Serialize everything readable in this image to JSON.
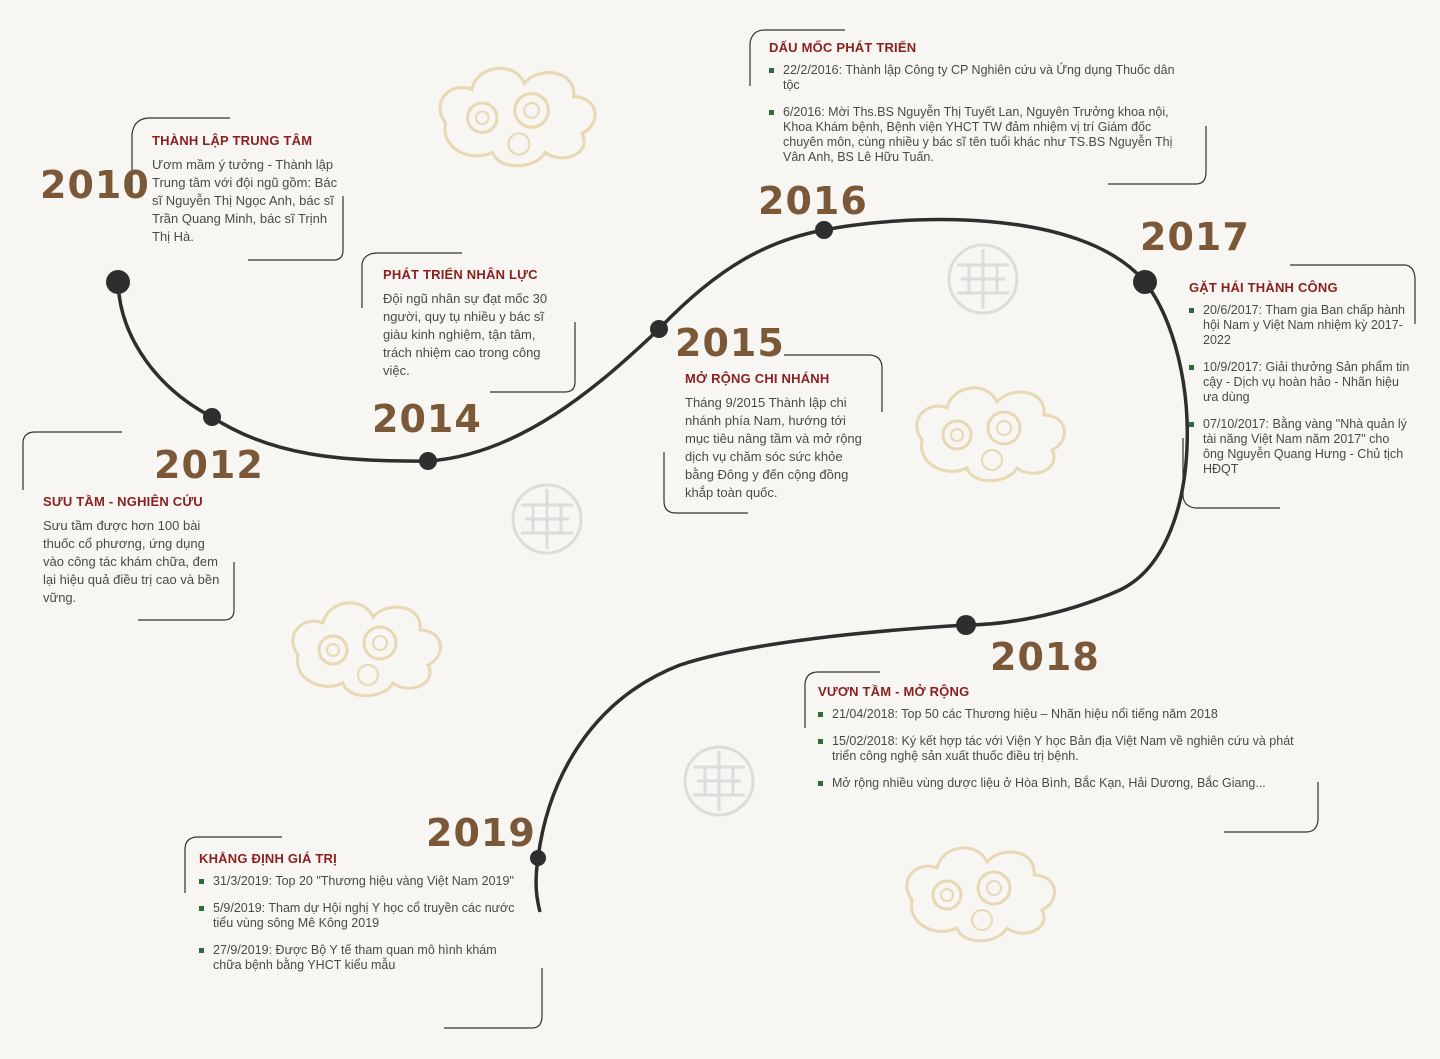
{
  "milestones": [
    {
      "year": "2010",
      "title": "THÀNH LẬP TRUNG TÂM",
      "text": "Ươm mầm ý tưởng - Thành lập Trung tâm với đội ngũ gồm: Bác sĩ Nguyễn Thị Ngọc Anh, bác sĩ Trần Quang Minh, bác sĩ Trịnh Thị Hà."
    },
    {
      "year": "2012",
      "title": "SƯU TẦM - NGHIÊN CỨU",
      "text": "Sưu tầm được hơn 100 bài thuốc cổ phương, ứng dụng vào công tác khám chữa, đem lại hiệu quả điều trị cao và bền vững."
    },
    {
      "year": "2014",
      "title": "PHÁT TRIỂN NHÂN LỰC",
      "text": "Đội ngũ nhân sự đạt mốc 30 người, quy tụ nhiều y bác sĩ giàu kinh nghiệm, tận tâm, trách nhiệm cao trong công việc."
    },
    {
      "year": "2015",
      "title": "MỞ RỘNG CHI NHÁNH",
      "text": "Tháng 9/2015 Thành lập chi nhánh phía Nam, hướng tới mục tiêu nâng tầm và mở rộng dịch vụ chăm sóc sức khỏe bằng Đông y đến cộng đồng khắp toàn quốc."
    },
    {
      "year": "2016",
      "title": "DẤU MỐC PHÁT TRIỂN",
      "items": [
        "22/2/2016: Thành lập Công ty CP Nghiên cứu và Ứng dụng Thuốc dân tộc",
        "6/2016: Mời Ths.BS Nguyễn Thị Tuyết Lan, Nguyên Trưởng khoa nội, Khoa Khám bệnh, Bệnh viện YHCT TW đảm nhiệm vị trí Giám đốc chuyên môn, cùng nhiều y bác sĩ tên tuổi khác như TS.BS Nguyễn Thị Vân Anh, BS Lê Hữu Tuấn."
      ]
    },
    {
      "year": "2017",
      "title": "GẶT HÁI THÀNH CÔNG",
      "items": [
        "20/6/2017: Tham gia Ban chấp hành hội Nam y Việt Nam nhiệm kỳ 2017-2022",
        "10/9/2017: Giải thưởng Sản phẩm tin cậy - Dịch vụ hoàn hảo - Nhãn hiệu ưa dùng",
        "07/10/2017: Bằng vàng \"Nhà quản lý tài năng Việt Nam năm 2017\" cho ông Nguyễn Quang Hưng - Chủ tịch HĐQT"
      ]
    },
    {
      "year": "2018",
      "title": "VƯƠN TẦM - MỞ RỘNG",
      "items": [
        "21/04/2018: Top 50 các Thương hiệu – Nhãn hiệu nổi tiếng năm 2018",
        "15/02/2018: Ký kết hợp tác với Viện Y học Bản địa Việt Nam về nghiên cứu và phát triển công nghệ sản xuất thuốc điều trị bệnh.",
        "Mở rộng nhiều vùng dược liệu ở Hòa Bình, Bắc Kạn, Hải Dương, Bắc Giang..."
      ]
    },
    {
      "year": "2019",
      "title": "KHẲNG ĐỊNH GIÁ TRỊ",
      "items": [
        "31/3/2019: Top 20 \"Thương hiệu vàng Việt Nam 2019\"",
        "5/9/2019: Tham dự Hội nghị Y học cổ truyền các nước tiểu vùng sông Mê Kông 2019",
        "27/9/2019: Được Bộ Y tế tham quan mô hình khám chữa bệnh bằng YHCT kiểu mẫu"
      ]
    }
  ],
  "colors": {
    "background": "#f7f6f3",
    "year": "#7a5838",
    "title": "#8b1f1f",
    "text": "#4a4a4a",
    "bullet": "#2f6b3a",
    "line": "#2e2e2e",
    "decor": "#e8d8b4"
  },
  "icons": {
    "cloud": "auspicious-cloud-icon",
    "longevity": "longevity-symbol-icon",
    "bullet": "square-bullet-icon"
  }
}
